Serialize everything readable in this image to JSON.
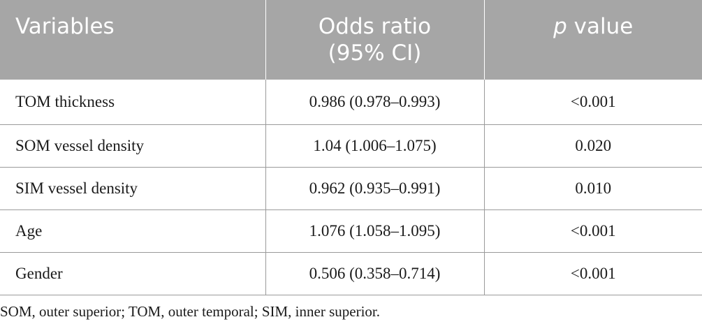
{
  "table": {
    "headers": {
      "variables": "Variables",
      "odds_ratio_line1": "Odds ratio",
      "odds_ratio_line2": "(95% CI)",
      "p_italic": "p",
      "p_rest": " value"
    },
    "rows": [
      {
        "variable": "TOM thickness",
        "odds_ratio": "0.986 (0.978–0.993)",
        "p_value": "<0.001"
      },
      {
        "variable": "SOM vessel density",
        "odds_ratio": "1.04 (1.006–1.075)",
        "p_value": "0.020"
      },
      {
        "variable": "SIM vessel density",
        "odds_ratio": "0.962 (0.935–0.991)",
        "p_value": "0.010"
      },
      {
        "variable": "Age",
        "odds_ratio": "1.076 (1.058–1.095)",
        "p_value": "<0.001"
      },
      {
        "variable": "Gender",
        "odds_ratio": "0.506 (0.358–0.714)",
        "p_value": "<0.001"
      }
    ]
  },
  "footnote": "SOM, outer superior; TOM, outer temporal; SIM, inner superior."
}
